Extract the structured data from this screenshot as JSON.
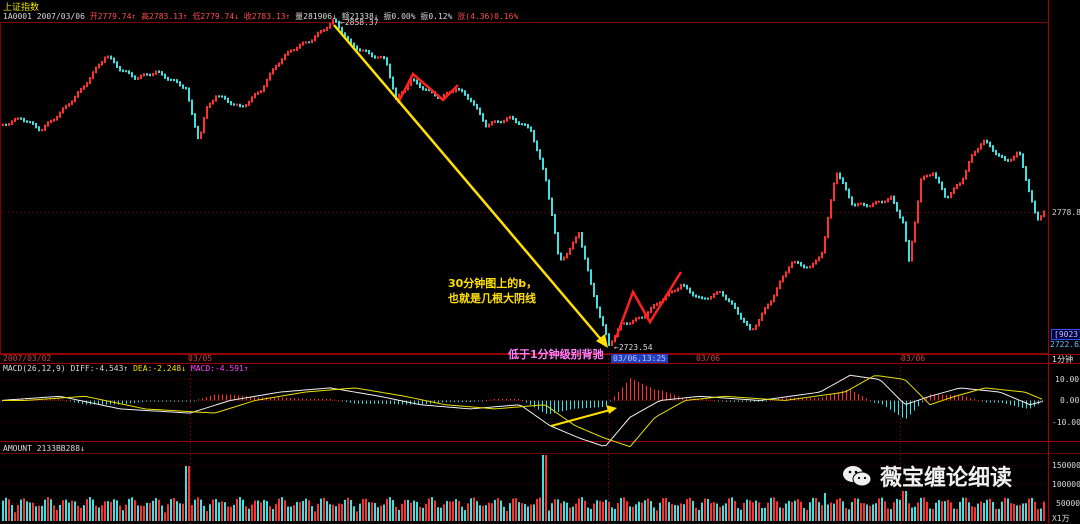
{
  "header": {
    "title": "上证指数",
    "code_date": "1A0001 2007/03/06",
    "open": "开2779.74↑",
    "high": "高2783.13↑",
    "low": "低2779.74↓",
    "close": "收2783.13↑",
    "volume": "量281906↓",
    "amount": "额21338↓",
    "amplitude": "振0.00%",
    "swing": "振0.12%",
    "change": "涨(4.36)0.16%"
  },
  "main_chart": {
    "high_marker": "2858.37",
    "low_marker": "2723.54",
    "right_price": "2778.8",
    "right_box": "[9023]",
    "right_bottom_price": "2722.63",
    "date_left": "2007/03/02",
    "date_mid": "03/05",
    "date_box": "03/06,13:25",
    "date_right1": "03/06",
    "date_right2": "03/06",
    "period": "1分钟"
  },
  "annotations": {
    "b_line1": "30分钟图上的b，",
    "b_line2": "也就是几根大阴线",
    "divergence": "低于1分钟级别背驰"
  },
  "macd": {
    "label": "MACD(26,12,9)",
    "diff": "DIFF:-4.543↑",
    "dea": "DEA:-2.248↓",
    "macd": "MACD:-4.591↑",
    "ticks": [
      "10.00",
      "0.00",
      "-10.00"
    ]
  },
  "amount_panel": {
    "label": "AMOUNT 2133BB288↓",
    "ticks": [
      "150000",
      "100000",
      "50000"
    ],
    "unit": "X1万"
  },
  "watermark": {
    "text": "薇宝缠论细读",
    "icon": "wechat-icon"
  },
  "colors": {
    "up": "#ff3030",
    "down": "#40e0e0",
    "arrow": "#ffe000",
    "grid": "#800000"
  }
}
